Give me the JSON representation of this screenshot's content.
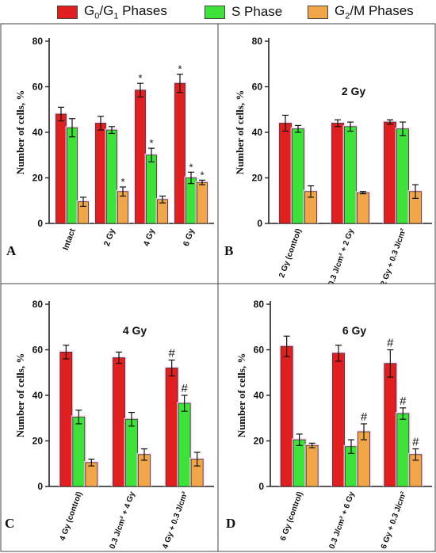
{
  "legend": [
    {
      "label": "G0/G1 Phases",
      "color": "#e02020"
    },
    {
      "label": "S Phase",
      "color": "#3fe23a"
    },
    {
      "label": "G2/M Phases",
      "color": "#f2a64a"
    }
  ],
  "colors": {
    "g0g1": "#e02020",
    "s": "#3fe23a",
    "g2m": "#f2a64a",
    "axis": "#222222"
  },
  "chart_data": [
    {
      "panel": "A",
      "type": "bar",
      "title": "",
      "ylabel": "Number of cells, %",
      "ylim": [
        0,
        80
      ],
      "yticks": [
        0,
        20,
        40,
        60,
        80
      ],
      "categories": [
        "Intact",
        "2 Gy",
        "4 Gy",
        "6 Gy"
      ],
      "series": [
        {
          "name": "G0/G1 Phases",
          "values": [
            48,
            44,
            58.5,
            61.5
          ],
          "errors": [
            3,
            3,
            3,
            4
          ],
          "marks": [
            "",
            "",
            "*",
            "*"
          ]
        },
        {
          "name": "S Phase",
          "values": [
            42,
            41,
            30,
            20
          ],
          "errors": [
            4,
            1.5,
            3,
            2.5
          ],
          "marks": [
            "",
            "",
            "*",
            "*"
          ]
        },
        {
          "name": "G2/M Phases",
          "values": [
            9.5,
            14,
            10.5,
            18
          ],
          "errors": [
            2,
            2,
            1.5,
            1
          ],
          "marks": [
            "",
            "*",
            "",
            "*"
          ]
        }
      ]
    },
    {
      "panel": "B",
      "type": "bar",
      "title": "2 Gy",
      "ylabel": "Number of cells, %",
      "ylim": [
        0,
        80
      ],
      "yticks": [
        0,
        20,
        40,
        60,
        80
      ],
      "categories": [
        "2 Gy (control)",
        "0.3 J/cm² + 2 Gy",
        "2 Gy + 0.3 J/cm²"
      ],
      "series": [
        {
          "name": "G0/G1 Phases",
          "values": [
            44,
            44,
            44.5
          ],
          "errors": [
            3.5,
            1.5,
            1
          ],
          "marks": [
            "",
            "",
            ""
          ]
        },
        {
          "name": "S Phase",
          "values": [
            41.5,
            42.5,
            41.5
          ],
          "errors": [
            1.5,
            2,
            3
          ],
          "marks": [
            "",
            "",
            ""
          ]
        },
        {
          "name": "G2/M Phases",
          "values": [
            14,
            13.5,
            14
          ],
          "errors": [
            2.5,
            0.5,
            3
          ],
          "marks": [
            "",
            "",
            ""
          ]
        }
      ]
    },
    {
      "panel": "C",
      "type": "bar",
      "title": "4 Gy",
      "ylabel": "Number of cells, %",
      "ylim": [
        0,
        80
      ],
      "yticks": [
        0,
        20,
        40,
        60,
        80
      ],
      "categories": [
        "4 Gy (control)",
        "0.3 J/cm² + 4 Gy",
        "4 Gy + 0.3 J/cm²"
      ],
      "series": [
        {
          "name": "G0/G1 Phases",
          "values": [
            59,
            56.5,
            52
          ],
          "errors": [
            3,
            2.5,
            3.5
          ],
          "marks": [
            "",
            "",
            "#"
          ]
        },
        {
          "name": "S Phase",
          "values": [
            30.5,
            29.5,
            36.5
          ],
          "errors": [
            3,
            3,
            3.5
          ],
          "marks": [
            "",
            "",
            "#"
          ]
        },
        {
          "name": "G2/M Phases",
          "values": [
            10.5,
            14,
            12
          ],
          "errors": [
            1.5,
            2.5,
            3
          ],
          "marks": [
            "",
            "",
            ""
          ]
        }
      ]
    },
    {
      "panel": "D",
      "type": "bar",
      "title": "6 Gy",
      "ylabel": "Number of cells, %",
      "ylim": [
        0,
        80
      ],
      "yticks": [
        0,
        20,
        40,
        60,
        80
      ],
      "categories": [
        "6 Gy (control)",
        "0.3 J/cm² + 6 Gy",
        "6 Gy + 0.3 J/cm²"
      ],
      "series": [
        {
          "name": "G0/G1 Phases",
          "values": [
            61.5,
            58.5,
            54
          ],
          "errors": [
            4.5,
            3.5,
            6
          ],
          "marks": [
            "",
            "",
            "#"
          ]
        },
        {
          "name": "S Phase",
          "values": [
            20.5,
            17.5,
            32
          ],
          "errors": [
            2.5,
            3,
            2.5
          ],
          "marks": [
            "",
            "",
            "#"
          ]
        },
        {
          "name": "G2/M Phases",
          "values": [
            18,
            24,
            14
          ],
          "errors": [
            1,
            3.5,
            2.5
          ],
          "marks": [
            "",
            "#",
            "#"
          ]
        }
      ]
    }
  ]
}
